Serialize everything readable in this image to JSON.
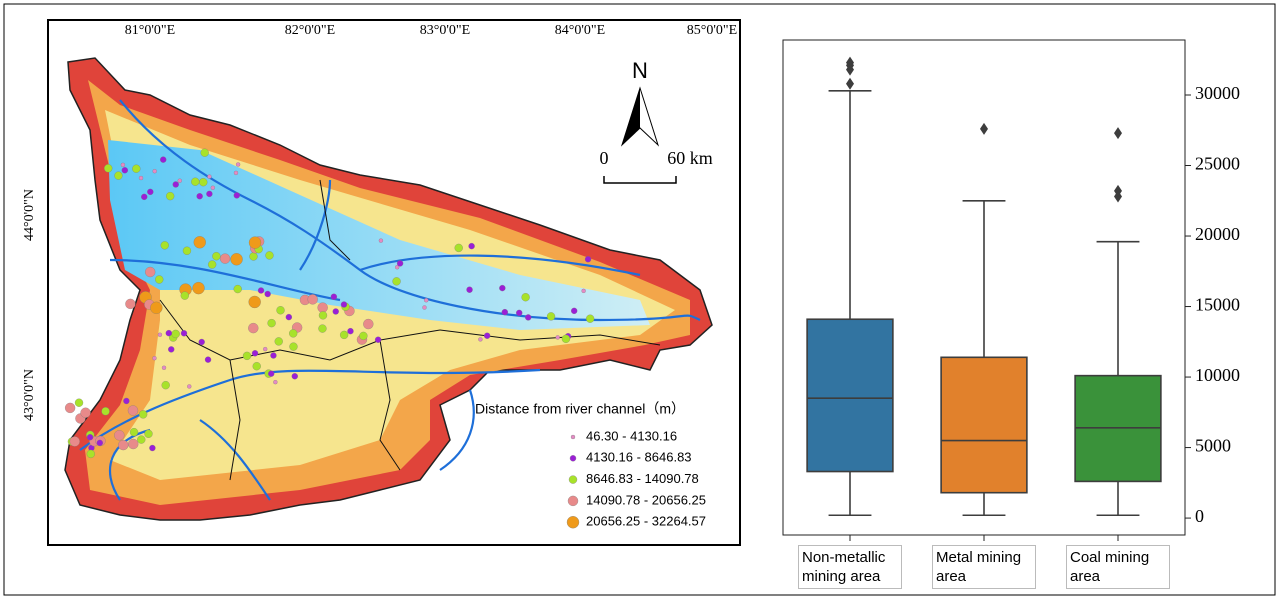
{
  "map": {
    "lon_labels": [
      "81°0'0\"E",
      "82°0'0\"E",
      "83°0'0\"E",
      "84°0'0\"E",
      "85°0'0\"E"
    ],
    "lat_labels": [
      "44°0'0\"N",
      "43°0'0\"N"
    ],
    "north": "N",
    "scale_labels": [
      "0",
      "60 km"
    ],
    "legend": {
      "title": "Distance from river channel（m）",
      "items": [
        {
          "label": "46.30 - 4130.16",
          "color": "#e58ac4"
        },
        {
          "label": "4130.16 - 8646.83",
          "color": "#9b1fd6"
        },
        {
          "label": "8646.83 - 14090.78",
          "color": "#a8e22a"
        },
        {
          "label": "14090.78 - 20656.25",
          "color": "#e88a8a"
        },
        {
          "label": "20656.25 - 32264.57",
          "color": "#ef9a1a"
        }
      ]
    }
  },
  "chart_data": {
    "type": "box",
    "categories": [
      "Non-metallic mining area",
      "Metal mining area",
      "Coal mining area"
    ],
    "colors": [
      "#3274a1",
      "#e1812c",
      "#3a923a"
    ],
    "boxes": [
      {
        "whislo": 200,
        "q1": 3300,
        "med": 8500,
        "q3": 14100,
        "whishi": 30300,
        "fliers": [
          32300,
          32100,
          31800,
          30800
        ]
      },
      {
        "whislo": 200,
        "q1": 1800,
        "med": 5500,
        "q3": 11400,
        "whishi": 22500,
        "fliers": [
          27600
        ]
      },
      {
        "whislo": 200,
        "q1": 2600,
        "med": 6400,
        "q3": 10100,
        "whishi": 19600,
        "fliers": [
          22800,
          23200,
          27300
        ]
      }
    ],
    "ylim": [
      -1200,
      33900
    ],
    "yticks": [
      0,
      5000,
      10000,
      15000,
      20000,
      25000,
      30000
    ]
  }
}
